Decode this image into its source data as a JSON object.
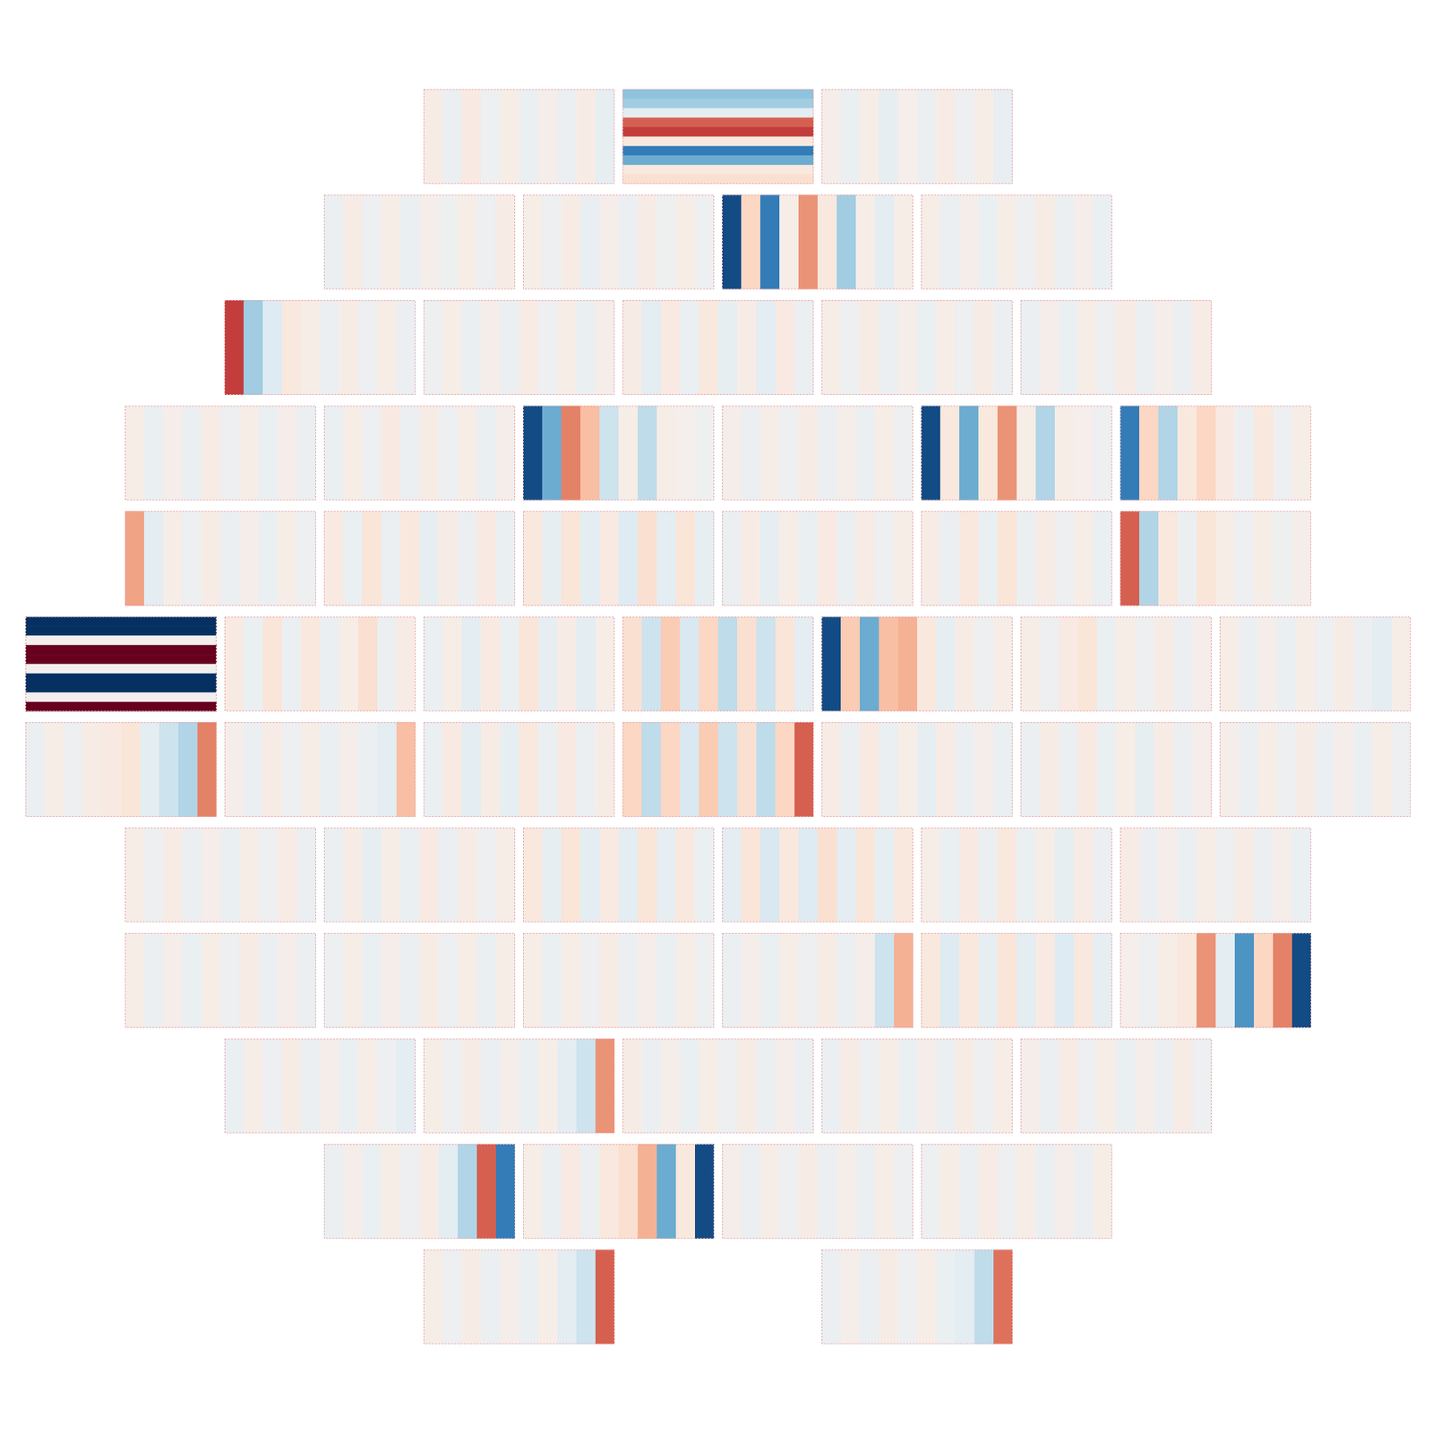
{
  "chart_data": {
    "type": "mosaic",
    "clim": [
      -1,
      1
    ],
    "ccds": [
      {
        "row": 0,
        "slot": 4,
        "values": [
          0.06,
          -0.05,
          0.08,
          -0.04,
          0.05,
          -0.06,
          0.04,
          -0.05,
          0.06,
          -0.08
        ]
      },
      {
        "row": 0,
        "slot": 6,
        "orientation": "horizontal",
        "values": [
          -0.4,
          -0.35,
          -0.1,
          0.6,
          0.7,
          0.1,
          -0.7,
          -0.5,
          0.1,
          0.15
        ]
      },
      {
        "row": 0,
        "slot": 8,
        "values": [
          0.04,
          -0.06,
          0.05,
          -0.08,
          0.03,
          -0.05,
          0.06,
          -0.04,
          0.05,
          -0.07
        ]
      },
      {
        "row": 1,
        "slot": 3,
        "values": [
          -0.05,
          0.06,
          -0.04,
          0.05,
          -0.06,
          0.04,
          -0.03,
          0.05,
          -0.04,
          0.06
        ]
      },
      {
        "row": 1,
        "slot": 5,
        "values": [
          0.05,
          -0.04,
          0.06,
          -0.07,
          0.04,
          -0.05,
          0.06,
          -0.03,
          0.05,
          -0.04
        ]
      },
      {
        "row": 1,
        "slot": 7,
        "values": [
          -0.9,
          0.2,
          -0.7,
          0.05,
          0.45,
          0.1,
          -0.35,
          0.05,
          -0.1,
          0.05
        ]
      },
      {
        "row": 1,
        "slot": 9,
        "values": [
          0.05,
          -0.05,
          0.04,
          -0.06,
          0.05,
          -0.04,
          0.06,
          -0.05,
          0.04,
          -0.06
        ]
      },
      {
        "row": 2,
        "slot": 2,
        "values": [
          0.7,
          -0.35,
          -0.12,
          0.1,
          0.05,
          -0.05,
          0.06,
          -0.04,
          0.05,
          -0.05
        ]
      },
      {
        "row": 2,
        "slot": 4,
        "values": [
          -0.04,
          0.05,
          -0.06,
          0.04,
          -0.05,
          0.06,
          -0.04,
          0.05,
          -0.06,
          0.04
        ]
      },
      {
        "row": 2,
        "slot": 6,
        "values": [
          0.06,
          -0.1,
          0.08,
          -0.06,
          0.1,
          -0.08,
          0.06,
          -0.1,
          0.08,
          -0.05
        ]
      },
      {
        "row": 2,
        "slot": 8,
        "values": [
          0.05,
          -0.04,
          0.06,
          -0.05,
          0.04,
          -0.06,
          0.05,
          -0.04,
          0.06,
          -0.05
        ]
      },
      {
        "row": 2,
        "slot": 10,
        "values": [
          -0.05,
          0.04,
          -0.06,
          0.05,
          -0.04,
          0.06,
          -0.05,
          0.04,
          -0.05,
          0.06
        ]
      },
      {
        "row": 3,
        "slot": 1,
        "values": [
          0.05,
          -0.06,
          0.04,
          -0.05,
          0.06,
          -0.04,
          0.05,
          -0.06,
          0.04,
          -0.05
        ]
      },
      {
        "row": 3,
        "slot": 3,
        "values": [
          -0.06,
          0.05,
          -0.04,
          0.08,
          -0.05,
          0.06,
          -0.04,
          0.05,
          -0.06,
          0.04
        ]
      },
      {
        "row": 3,
        "slot": 5,
        "values": [
          -0.9,
          -0.5,
          0.5,
          0.3,
          -0.2,
          0.05,
          -0.25,
          0.05,
          0.02,
          -0.03
        ]
      },
      {
        "row": 3,
        "slot": 7,
        "values": [
          0.04,
          -0.05,
          0.05,
          -0.04,
          0.06,
          -0.05,
          0.04,
          -0.06,
          0.05,
          -0.04
        ]
      },
      {
        "row": 3,
        "slot": 9,
        "values": [
          -0.9,
          0.1,
          -0.5,
          0.1,
          0.45,
          0.05,
          -0.3,
          0.05,
          0.03,
          -0.04
        ]
      },
      {
        "row": 3,
        "slot": 11,
        "values": [
          -0.7,
          0.2,
          -0.3,
          0.1,
          0.2,
          0.08,
          -0.05,
          0.1,
          -0.04,
          0.05
        ]
      },
      {
        "row": 4,
        "slot": 1,
        "values": [
          0.4,
          -0.1,
          0.05,
          -0.04,
          0.06,
          -0.05,
          0.04,
          -0.06,
          0.05,
          -0.04
        ]
      },
      {
        "row": 4,
        "slot": 3,
        "values": [
          0.08,
          -0.06,
          0.12,
          -0.05,
          0.1,
          -0.08,
          0.06,
          -0.05,
          0.08,
          -0.06
        ]
      },
      {
        "row": 4,
        "slot": 5,
        "values": [
          0.1,
          -0.08,
          0.12,
          -0.1,
          0.08,
          -0.12,
          0.15,
          -0.1,
          0.12,
          -0.08
        ]
      },
      {
        "row": 4,
        "slot": 7,
        "values": [
          -0.05,
          0.06,
          -0.08,
          0.05,
          -0.06,
          0.08,
          -0.05,
          0.06,
          -0.04,
          0.05
        ]
      },
      {
        "row": 4,
        "slot": 9,
        "values": [
          0.06,
          -0.05,
          0.1,
          -0.06,
          0.12,
          -0.05,
          0.06,
          -0.04,
          0.05,
          -0.06
        ]
      },
      {
        "row": 4,
        "slot": 11,
        "values": [
          0.6,
          -0.3,
          0.1,
          -0.05,
          0.12,
          0.05,
          -0.04,
          0.05,
          -0.03,
          0.04
        ]
      },
      {
        "row": 5,
        "slot": 0,
        "orientation": "horizontal",
        "values": [
          -1,
          -1,
          0,
          1,
          1,
          0,
          -1,
          -1,
          0,
          1
        ]
      },
      {
        "row": 5,
        "slot": 2,
        "values": [
          0.08,
          -0.06,
          0.12,
          -0.05,
          0.1,
          -0.06,
          0.05,
          0.15,
          -0.05,
          0.06
        ]
      },
      {
        "row": 5,
        "slot": 4,
        "values": [
          -0.06,
          0.05,
          -0.1,
          0.08,
          -0.06,
          0.12,
          -0.08,
          0.06,
          -0.1,
          0.05
        ]
      },
      {
        "row": 5,
        "slot": 6,
        "values": [
          0.15,
          -0.2,
          0.25,
          -0.15,
          0.2,
          -0.25,
          0.15,
          -0.2,
          0.12,
          -0.1
        ]
      },
      {
        "row": 5,
        "slot": 8,
        "values": [
          -0.9,
          0.25,
          -0.5,
          0.3,
          0.35,
          0.1,
          -0.08,
          0.06,
          -0.04,
          0.05
        ]
      },
      {
        "row": 5,
        "slot": 10,
        "values": [
          0.05,
          -0.04,
          0.08,
          0.12,
          -0.06,
          0.05,
          -0.04,
          0.06,
          -0.05,
          0.04
        ]
      },
      {
        "row": 5,
        "slot": 12,
        "values": [
          0.05,
          -0.05,
          0.04,
          -0.06,
          0.05,
          -0.04,
          0.06,
          -0.05,
          -0.1,
          0.05
        ]
      },
      {
        "row": 6,
        "slot": 0,
        "values": [
          -0.05,
          0.05,
          -0.04,
          0.06,
          0.08,
          0.12,
          -0.1,
          -0.2,
          -0.3,
          0.5
        ]
      },
      {
        "row": 6,
        "slot": 2,
        "values": [
          0.04,
          -0.05,
          0.06,
          -0.04,
          0.05,
          -0.06,
          0.04,
          -0.05,
          -0.1,
          0.3
        ]
      },
      {
        "row": 6,
        "slot": 4,
        "values": [
          -0.06,
          0.08,
          -0.1,
          0.06,
          -0.08,
          0.1,
          -0.06,
          0.08,
          -0.05,
          0.06
        ]
      },
      {
        "row": 6,
        "slot": 6,
        "values": [
          0.2,
          -0.25,
          0.2,
          -0.15,
          0.25,
          -0.2,
          0.15,
          -0.25,
          0.2,
          0.6
        ]
      },
      {
        "row": 6,
        "slot": 8,
        "values": [
          0.06,
          -0.05,
          0.08,
          -0.06,
          0.05,
          -0.08,
          0.06,
          -0.05,
          0.04,
          -0.06
        ]
      },
      {
        "row": 6,
        "slot": 10,
        "values": [
          -0.05,
          0.06,
          -0.05,
          0.08,
          -0.06,
          0.05,
          -0.08,
          0.06,
          -0.05,
          0.04
        ]
      },
      {
        "row": 6,
        "slot": 12,
        "values": [
          0.04,
          -0.05,
          0.05,
          -0.04,
          0.06,
          -0.05,
          0.04,
          -0.06,
          0.05,
          -0.04
        ]
      },
      {
        "row": 7,
        "slot": 1,
        "values": [
          0.05,
          -0.04,
          0.06,
          -0.05,
          0.04,
          -0.06,
          0.05,
          -0.04,
          0.06,
          -0.05
        ]
      },
      {
        "row": 7,
        "slot": 3,
        "values": [
          -0.05,
          0.06,
          -0.08,
          0.05,
          -0.06,
          0.08,
          -0.05,
          0.06,
          -0.04,
          0.05
        ]
      },
      {
        "row": 7,
        "slot": 5,
        "values": [
          0.1,
          -0.08,
          0.12,
          -0.1,
          0.08,
          -0.1,
          0.12,
          -0.08,
          0.1,
          -0.06
        ]
      },
      {
        "row": 7,
        "slot": 7,
        "values": [
          -0.1,
          0.12,
          -0.15,
          0.1,
          -0.12,
          0.15,
          -0.1,
          0.12,
          -0.08,
          0.1
        ]
      },
      {
        "row": 7,
        "slot": 9,
        "values": [
          0.05,
          -0.06,
          0.08,
          -0.05,
          0.1,
          -0.06,
          0.05,
          -0.08,
          0.06,
          -0.05
        ]
      },
      {
        "row": 7,
        "slot": 11,
        "values": [
          0.06,
          -0.05,
          0.04,
          -0.06,
          0.05,
          -0.04,
          0.06,
          -0.05,
          0.04,
          -0.06
        ]
      },
      {
        "row": 8,
        "slot": 1,
        "values": [
          0.05,
          -0.05,
          0.04,
          -0.06,
          0.05,
          -0.04,
          0.06,
          -0.05,
          0.04,
          -0.05
        ]
      },
      {
        "row": 8,
        "slot": 3,
        "values": [
          -0.04,
          0.05,
          -0.06,
          0.04,
          -0.05,
          0.06,
          -0.04,
          0.05,
          -0.06,
          0.05
        ]
      },
      {
        "row": 8,
        "slot": 5,
        "values": [
          0.05,
          -0.06,
          0.05,
          -0.04,
          0.06,
          -0.05,
          0.04,
          -0.06,
          0.05,
          -0.04
        ]
      },
      {
        "row": 8,
        "slot": 7,
        "values": [
          -0.05,
          0.04,
          -0.06,
          0.05,
          -0.04,
          0.06,
          -0.05,
          0.04,
          -0.2,
          0.35
        ]
      },
      {
        "row": 8,
        "slot": 9,
        "values": [
          0.1,
          -0.12,
          0.1,
          -0.08,
          0.12,
          -0.1,
          0.08,
          -0.12,
          0.1,
          -0.08
        ]
      },
      {
        "row": 8,
        "slot": 11,
        "values": [
          0.03,
          -0.04,
          0.05,
          0.1,
          0.45,
          -0.1,
          -0.6,
          0.2,
          0.5,
          -0.9
        ]
      },
      {
        "row": 9,
        "slot": 2,
        "values": [
          -0.06,
          0.05,
          -0.04,
          0.06,
          -0.05,
          0.04,
          -0.06,
          0.05,
          -0.04,
          -0.1
        ]
      },
      {
        "row": 9,
        "slot": 4,
        "values": [
          0.05,
          -0.04,
          0.06,
          -0.05,
          0.04,
          -0.06,
          0.05,
          -0.1,
          -0.2,
          0.45
        ]
      },
      {
        "row": 9,
        "slot": 6,
        "values": [
          0.06,
          -0.05,
          0.04,
          -0.06,
          0.05,
          -0.04,
          0.06,
          -0.05,
          0.04,
          -0.05
        ]
      },
      {
        "row": 9,
        "slot": 8,
        "values": [
          -0.05,
          0.06,
          -0.04,
          0.05,
          -0.06,
          0.04,
          -0.05,
          0.06,
          -0.04,
          0.05
        ]
      },
      {
        "row": 9,
        "slot": 10,
        "values": [
          0.04,
          -0.05,
          0.06,
          -0.04,
          0.05,
          -0.06,
          0.04,
          -0.05,
          0.06,
          -0.04
        ]
      },
      {
        "row": 10,
        "slot": 3,
        "values": [
          -0.05,
          0.04,
          -0.06,
          0.05,
          -0.04,
          0.06,
          -0.1,
          -0.3,
          0.6,
          -0.7
        ]
      },
      {
        "row": 10,
        "slot": 5,
        "values": [
          0.05,
          -0.06,
          0.08,
          -0.05,
          0.1,
          0.15,
          0.35,
          -0.5,
          0.1,
          -0.9
        ]
      },
      {
        "row": 10,
        "slot": 7,
        "values": [
          0.04,
          -0.05,
          0.05,
          -0.04,
          0.06,
          -0.05,
          0.04,
          -0.06,
          0.05,
          -0.04
        ]
      },
      {
        "row": 10,
        "slot": 9,
        "values": [
          -0.04,
          0.05,
          -0.05,
          0.06,
          -0.04,
          0.05,
          -0.06,
          0.04,
          -0.05,
          0.05
        ]
      },
      {
        "row": 11,
        "slot": 4,
        "values": [
          0.05,
          -0.04,
          0.06,
          -0.05,
          0.04,
          -0.06,
          0.05,
          -0.1,
          -0.2,
          0.6
        ]
      },
      {
        "row": 11,
        "slot": 8,
        "values": [
          -0.05,
          0.04,
          -0.05,
          0.06,
          -0.04,
          0.05,
          -0.06,
          -0.1,
          -0.25,
          0.55
        ]
      }
    ]
  }
}
